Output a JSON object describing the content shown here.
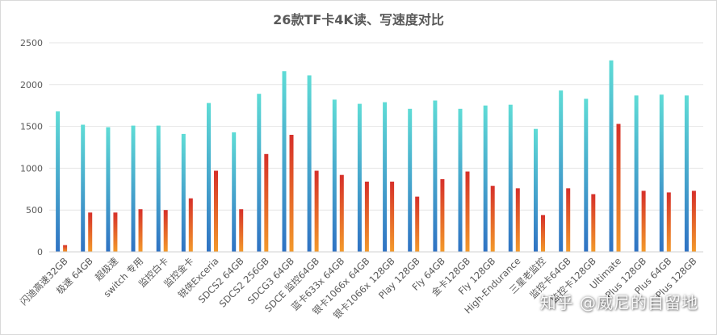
{
  "chart_data": {
    "type": "bar",
    "title": "26款TF卡4K读、写速度对比",
    "xlabel": "",
    "ylabel": "",
    "ylim": [
      0,
      2500
    ],
    "yticks": [
      0,
      500,
      1000,
      1500,
      2000,
      2500
    ],
    "grid": true,
    "legend": "none",
    "categories": [
      "闪迪高速32GB",
      "极速 64GB",
      "超极速",
      "switch 专用",
      "监控白卡",
      "监控金卡",
      "锐侠Exceria",
      "SDCS2 64GB",
      "SDCS2 256GB",
      "SDCG3 64GB",
      "SDCE 监控64GB",
      "蓝卡633x 64GB",
      "银卡1066x 64GB",
      "银卡1066x 128GB",
      "Play 128GB",
      "Fly 64GB",
      "金卡128GB",
      "Fly 128GB",
      "High-Endurance",
      "三星老监控",
      "监控卡64GB",
      "监控卡128GB",
      "Ultimate",
      "Plus 128GB",
      "Plus 64GB",
      "Plus 128GB"
    ],
    "series": [
      {
        "values": [
          1680,
          1520,
          1490,
          1510,
          1510,
          1410,
          1780,
          1430,
          1890,
          2160,
          2110,
          1820,
          1770,
          1790,
          1710,
          1810,
          1710,
          1750,
          1760,
          1470,
          1930,
          1830,
          2290,
          1870,
          1880,
          1870
        ]
      },
      {
        "values": [
          80,
          470,
          470,
          510,
          500,
          640,
          970,
          510,
          1170,
          1400,
          970,
          920,
          840,
          840,
          660,
          870,
          960,
          790,
          760,
          440,
          760,
          690,
          1530,
          730,
          710,
          730
        ]
      }
    ],
    "colors": {
      "read_top": "#5fdcd6",
      "read_bottom": "#2f72c3",
      "write_top": "#d6302a",
      "write_bottom": "#f39a2b",
      "grid": "#e6e6e6",
      "axis_text": "#595959"
    }
  },
  "watermark": "知乎 @威尼的自留地"
}
